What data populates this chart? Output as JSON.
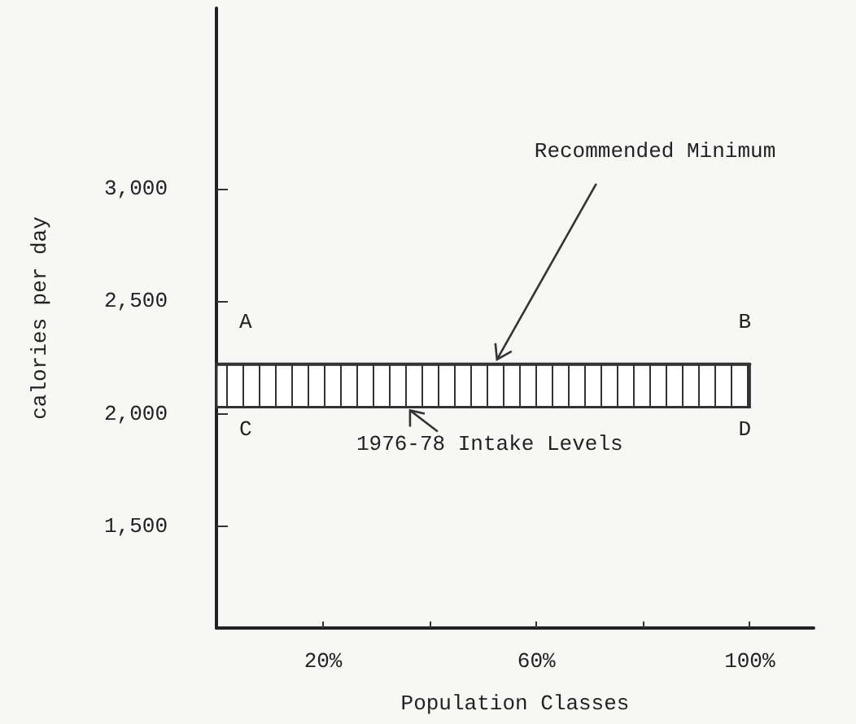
{
  "chart_data": {
    "type": "line",
    "xlabel": "Population Classes",
    "ylabel": "calories per day",
    "xlim": [
      0,
      112
    ],
    "xticks": [
      {
        "value": 20,
        "label": "20%"
      },
      {
        "value": 40,
        "label": null
      },
      {
        "value": 60,
        "label": "60%"
      },
      {
        "value": 80,
        "label": null
      },
      {
        "value": 100,
        "label": "100%"
      }
    ],
    "ylim": [
      1050,
      3800
    ],
    "yticks": [
      {
        "value": 1500,
        "label": "1,500"
      },
      {
        "value": 2000,
        "label": "2,000"
      },
      {
        "value": 2500,
        "label": "2,500"
      },
      {
        "value": 3000,
        "label": "3,000"
      }
    ],
    "series": [
      {
        "color": "#333333",
        "x": [
          0,
          100
        ],
        "values": [
          2220,
          2220
        ],
        "lower": [
          2030,
          2030
        ],
        "upper": [
          2220,
          2220
        ]
      }
    ],
    "marker": "none",
    "grid": false,
    "annotations": [
      {
        "text": "Recommended Minimum",
        "x": 52,
        "y": 2220
      },
      {
        "text": "1976-78 Intake Levels",
        "x": 36,
        "y": 2030
      },
      {
        "text": "A",
        "x": 0,
        "y": 2220
      },
      {
        "text": "B",
        "x": 100,
        "y": 2220
      },
      {
        "text": "C",
        "x": 0,
        "y": 2030
      },
      {
        "text": "D",
        "x": 100,
        "y": 2030
      }
    ]
  }
}
